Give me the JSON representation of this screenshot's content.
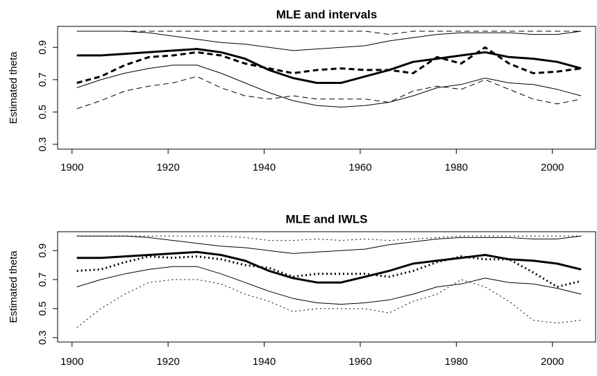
{
  "chart_data": [
    {
      "type": "line",
      "title": "MLE and intervals",
      "ylabel": "Estimated theta",
      "x": [
        1901,
        1906,
        1911,
        1916,
        1921,
        1926,
        1931,
        1936,
        1941,
        1946,
        1951,
        1956,
        1961,
        1966,
        1971,
        1976,
        1981,
        1986,
        1991,
        1996,
        2001,
        2006
      ],
      "xlim": [
        1897,
        2009
      ],
      "xticks": [
        1900,
        1920,
        1940,
        1960,
        1980,
        2000
      ],
      "ylim": [
        0.27,
        1.03
      ],
      "yticks": [
        0.3,
        0.5,
        0.7,
        0.9
      ],
      "series": [
        {
          "color": "#000",
          "line_width": 1,
          "dash": "solid",
          "values": [
            1.0,
            1.0,
            1.0,
            0.99,
            0.97,
            0.95,
            0.93,
            0.92,
            0.9,
            0.88,
            0.89,
            0.9,
            0.91,
            0.94,
            0.96,
            0.98,
            0.99,
            0.99,
            0.99,
            0.98,
            0.98,
            1.0
          ]
        },
        {
          "color": "#000",
          "line_width": 1,
          "dash": "solid",
          "values": [
            0.65,
            0.7,
            0.74,
            0.77,
            0.79,
            0.79,
            0.74,
            0.68,
            0.62,
            0.57,
            0.54,
            0.53,
            0.54,
            0.56,
            0.6,
            0.65,
            0.67,
            0.71,
            0.68,
            0.67,
            0.64,
            0.6
          ]
        },
        {
          "color": "#000",
          "line_width": 3,
          "dash": "solid",
          "values": [
            0.85,
            0.85,
            0.86,
            0.87,
            0.88,
            0.89,
            0.87,
            0.83,
            0.76,
            0.71,
            0.68,
            0.68,
            0.72,
            0.76,
            0.81,
            0.83,
            0.85,
            0.87,
            0.84,
            0.83,
            0.81,
            0.77
          ]
        },
        {
          "color": "#000",
          "line_width": 1,
          "dash": "dashed",
          "values": [
            1.0,
            1.0,
            1.0,
            1.0,
            1.0,
            1.0,
            1.0,
            1.0,
            1.0,
            1.0,
            1.0,
            1.0,
            1.0,
            0.98,
            1.0,
            1.0,
            1.0,
            1.0,
            1.0,
            1.0,
            1.0,
            1.0
          ]
        },
        {
          "color": "#000",
          "line_width": 1,
          "dash": "dashed",
          "values": [
            0.52,
            0.57,
            0.63,
            0.66,
            0.68,
            0.72,
            0.65,
            0.6,
            0.58,
            0.6,
            0.58,
            0.58,
            0.58,
            0.56,
            0.63,
            0.66,
            0.64,
            0.7,
            0.64,
            0.58,
            0.55,
            0.58
          ]
        },
        {
          "color": "#000",
          "line_width": 3,
          "dash": "dashed",
          "values": [
            0.68,
            0.72,
            0.79,
            0.84,
            0.85,
            0.87,
            0.85,
            0.8,
            0.77,
            0.74,
            0.76,
            0.77,
            0.76,
            0.76,
            0.74,
            0.84,
            0.8,
            0.9,
            0.8,
            0.74,
            0.75,
            0.77
          ]
        }
      ]
    },
    {
      "type": "line",
      "title": "MLE and IWLS",
      "ylabel": "Estimated theta",
      "x": [
        1901,
        1906,
        1911,
        1916,
        1921,
        1926,
        1931,
        1936,
        1941,
        1946,
        1951,
        1956,
        1961,
        1966,
        1971,
        1976,
        1981,
        1986,
        1991,
        1996,
        2001,
        2006
      ],
      "xlim": [
        1897,
        2009
      ],
      "xticks": [
        1900,
        1920,
        1940,
        1960,
        1980,
        2000
      ],
      "ylim": [
        0.27,
        1.03
      ],
      "yticks": [
        0.3,
        0.5,
        0.7,
        0.9
      ],
      "series": [
        {
          "color": "#000",
          "line_width": 1,
          "dash": "solid",
          "values": [
            1.0,
            1.0,
            1.0,
            0.99,
            0.97,
            0.95,
            0.93,
            0.92,
            0.9,
            0.88,
            0.89,
            0.9,
            0.91,
            0.94,
            0.96,
            0.98,
            0.99,
            0.99,
            0.99,
            0.98,
            0.98,
            1.0
          ]
        },
        {
          "color": "#000",
          "line_width": 1,
          "dash": "solid",
          "values": [
            0.65,
            0.7,
            0.74,
            0.77,
            0.79,
            0.79,
            0.74,
            0.68,
            0.62,
            0.57,
            0.54,
            0.53,
            0.54,
            0.56,
            0.6,
            0.65,
            0.67,
            0.71,
            0.68,
            0.67,
            0.64,
            0.6
          ]
        },
        {
          "color": "#000",
          "line_width": 3,
          "dash": "solid",
          "values": [
            0.85,
            0.85,
            0.86,
            0.87,
            0.88,
            0.89,
            0.87,
            0.83,
            0.76,
            0.71,
            0.68,
            0.68,
            0.72,
            0.76,
            0.81,
            0.83,
            0.85,
            0.87,
            0.84,
            0.83,
            0.81,
            0.77
          ]
        },
        {
          "color": "#000",
          "line_width": 1,
          "dash": "dotted",
          "values": [
            1.0,
            1.0,
            1.0,
            1.0,
            1.0,
            1.0,
            1.0,
            0.99,
            0.97,
            0.97,
            0.98,
            0.97,
            0.98,
            0.97,
            0.98,
            0.99,
            1.0,
            1.0,
            1.0,
            1.0,
            1.0,
            1.0
          ]
        },
        {
          "color": "#000",
          "line_width": 1,
          "dash": "dotted",
          "values": [
            0.37,
            0.5,
            0.6,
            0.68,
            0.7,
            0.7,
            0.67,
            0.6,
            0.55,
            0.48,
            0.5,
            0.5,
            0.5,
            0.47,
            0.55,
            0.6,
            0.7,
            0.65,
            0.55,
            0.42,
            0.4,
            0.42
          ]
        },
        {
          "color": "#000",
          "line_width": 3,
          "dash": "dotted",
          "values": [
            0.76,
            0.77,
            0.82,
            0.86,
            0.85,
            0.86,
            0.84,
            0.8,
            0.78,
            0.72,
            0.74,
            0.74,
            0.74,
            0.72,
            0.76,
            0.82,
            0.86,
            0.84,
            0.84,
            0.75,
            0.65,
            0.69
          ]
        }
      ]
    }
  ]
}
